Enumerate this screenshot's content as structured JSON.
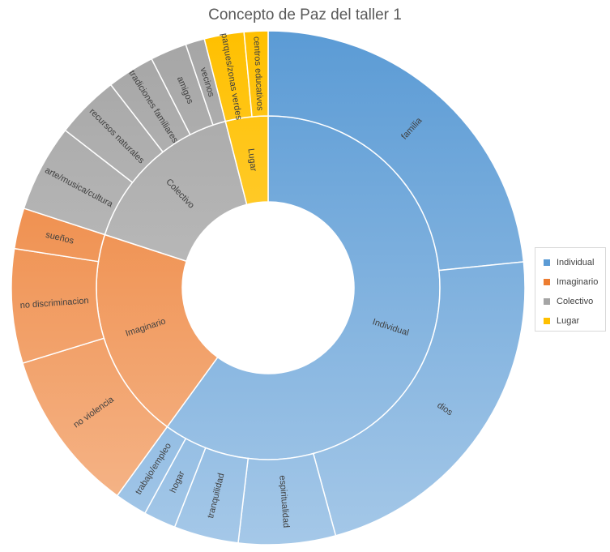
{
  "chart_data": {
    "type": "sunburst",
    "title": "Concepto de Paz del taller 1",
    "legend": {
      "placement": "right",
      "entries": [
        "Individual",
        "Imaginario",
        "Colectivo",
        "Lugar"
      ]
    },
    "series": [
      {
        "name": "Individual",
        "color": "#5b9bd5",
        "value": 60,
        "children": [
          {
            "name": "familia",
            "value": 23
          },
          {
            "name": "dios",
            "value": 22
          },
          {
            "name": "espiritualidad",
            "value": 6
          },
          {
            "name": "tranquilidad",
            "value": 4
          },
          {
            "name": "hogar",
            "value": 2
          },
          {
            "name": "trabajo/empleo",
            "value": 2
          }
        ]
      },
      {
        "name": "Imaginario",
        "color": "#ed7d31",
        "value": 20,
        "children": [
          {
            "name": "no violencia",
            "value": 10
          },
          {
            "name": "no discriminacion",
            "value": 7
          },
          {
            "name": "sueños",
            "value": 2.5
          }
        ]
      },
      {
        "name": "Colectivo",
        "color": "#a5a5a5",
        "value": 16,
        "children": [
          {
            "name": "arte/musica/cultura",
            "value": 5.5
          },
          {
            "name": "recursos naturales",
            "value": 4
          },
          {
            "name": "tradiciones familiares",
            "value": 3
          },
          {
            "name": "amigos",
            "value": 2.3
          },
          {
            "name": "vecinos",
            "value": 1.2
          }
        ]
      },
      {
        "name": "Lugar",
        "color": "#ffc000",
        "value": 4,
        "children": [
          {
            "name": "parques/zonas verdes",
            "value": 2.5
          },
          {
            "name": "centros educativos",
            "value": 1.5
          }
        ]
      }
    ]
  }
}
